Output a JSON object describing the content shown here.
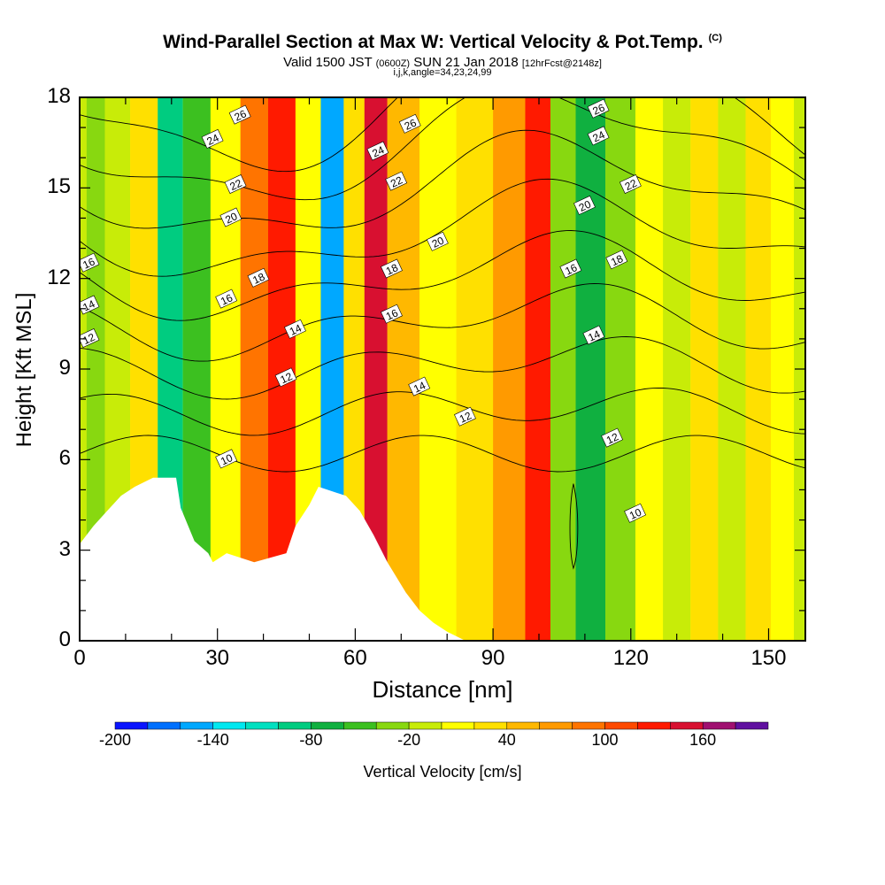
{
  "header": {
    "title": "Wind-Parallel Section at Max W: Vertical Velocity & Pot.Temp.",
    "title_mark": "(C)",
    "valid_prefix": "Valid 1500 JST",
    "valid_utc": "(0600Z)",
    "valid_date": "SUN 21 Jan 2018",
    "forecast_info": "[12hrFcst@2148z]",
    "section_info": "i,j,k,angle=34,23,24,99"
  },
  "chart_data": {
    "type": "heatmap",
    "title": "Wind-Parallel Section at Max W: Vertical Velocity & Pot.Temp.",
    "xlabel": "Distance [nm]",
    "ylabel": "Height [Kft MSL]",
    "xlim": [
      0,
      158
    ],
    "ylim": [
      0,
      18
    ],
    "x_ticks": [
      "0",
      "30",
      "60",
      "90",
      "120",
      "150"
    ],
    "y_ticks": [
      "0",
      "3",
      "6",
      "9",
      "12",
      "15",
      "18"
    ],
    "colorbar": {
      "title": "Vertical Velocity [cm/s]",
      "tick_labels": [
        "-200",
        "-140",
        "-80",
        "-20",
        "40",
        "100",
        "160"
      ],
      "levels_cm_s": [
        -200,
        -180,
        -160,
        -140,
        -120,
        -100,
        -80,
        -60,
        -40,
        -20,
        0,
        20,
        40,
        60,
        80,
        100,
        120,
        140,
        160,
        180,
        200
      ],
      "colors": [
        "#0a14ff",
        "#0070ff",
        "#00a8ff",
        "#00e8f0",
        "#00e0c0",
        "#00cc80",
        "#10b040",
        "#3cc020",
        "#88d810",
        "#c8ec08",
        "#ffff00",
        "#ffe000",
        "#ffb800",
        "#ff9a00",
        "#ff7400",
        "#ff4a00",
        "#ff1a00",
        "#d81030",
        "#a01070",
        "#6010a0"
      ]
    },
    "vertical_velocity_bands_cm_s": [
      {
        "x": 0,
        "w": -20
      },
      {
        "x": 3,
        "w": -40
      },
      {
        "x": 8,
        "w": -10
      },
      {
        "x": 14,
        "w": 25
      },
      {
        "x": 20,
        "w": -90
      },
      {
        "x": 25,
        "w": -50
      },
      {
        "x": 32,
        "w": 15
      },
      {
        "x": 38,
        "w": 90
      },
      {
        "x": 44,
        "w": 120
      },
      {
        "x": 50,
        "w": 10
      },
      {
        "x": 55,
        "w": -150
      },
      {
        "x": 60,
        "w": 20
      },
      {
        "x": 64,
        "w": 140
      },
      {
        "x": 70,
        "w": 40
      },
      {
        "x": 78,
        "w": 10
      },
      {
        "x": 86,
        "w": 30
      },
      {
        "x": 94,
        "w": 60
      },
      {
        "x": 100,
        "w": 120
      },
      {
        "x": 105,
        "w": -40
      },
      {
        "x": 111,
        "w": -70
      },
      {
        "x": 118,
        "w": -30
      },
      {
        "x": 124,
        "w": 10
      },
      {
        "x": 130,
        "w": -20
      },
      {
        "x": 136,
        "w": 20
      },
      {
        "x": 142,
        "w": -20
      },
      {
        "x": 148,
        "w": 30
      },
      {
        "x": 153,
        "w": 10
      },
      {
        "x": 158,
        "w": -20
      }
    ],
    "terrain_kft": [
      {
        "x": 0,
        "h": 3.2
      },
      {
        "x": 3,
        "h": 3.8
      },
      {
        "x": 6,
        "h": 4.3
      },
      {
        "x": 9,
        "h": 4.8
      },
      {
        "x": 12,
        "h": 5.1
      },
      {
        "x": 16,
        "h": 5.4
      },
      {
        "x": 21,
        "h": 5.4
      },
      {
        "x": 22,
        "h": 4.4
      },
      {
        "x": 25,
        "h": 3.3
      },
      {
        "x": 28,
        "h": 2.9
      },
      {
        "x": 29,
        "h": 2.6
      },
      {
        "x": 32,
        "h": 2.9
      },
      {
        "x": 38,
        "h": 2.6
      },
      {
        "x": 45,
        "h": 2.9
      },
      {
        "x": 47,
        "h": 3.8
      },
      {
        "x": 50,
        "h": 4.5
      },
      {
        "x": 52,
        "h": 5.1
      },
      {
        "x": 58,
        "h": 4.8
      },
      {
        "x": 61,
        "h": 4.3
      },
      {
        "x": 64,
        "h": 3.5
      },
      {
        "x": 67,
        "h": 2.6
      },
      {
        "x": 71,
        "h": 1.6
      },
      {
        "x": 74,
        "h": 1.0
      },
      {
        "x": 77,
        "h": 0.6
      },
      {
        "x": 80,
        "h": 0.3
      },
      {
        "x": 84,
        "h": 0.0
      }
    ],
    "theta_contours_c": [
      10,
      12,
      14,
      16,
      18,
      20,
      22,
      24,
      26
    ],
    "theta_contour_labels": [
      {
        "text": "10",
        "x": 32,
        "y": 6.0
      },
      {
        "text": "12",
        "x": 2,
        "y": 10.0
      },
      {
        "text": "14",
        "x": 2,
        "y": 11.1
      },
      {
        "text": "16",
        "x": 2,
        "y": 12.5
      },
      {
        "text": "12",
        "x": 45,
        "y": 8.7
      },
      {
        "text": "14",
        "x": 47,
        "y": 10.3
      },
      {
        "text": "16",
        "x": 32,
        "y": 11.3
      },
      {
        "text": "18",
        "x": 39,
        "y": 12.0
      },
      {
        "text": "20",
        "x": 33,
        "y": 14.0
      },
      {
        "text": "22",
        "x": 34,
        "y": 15.1
      },
      {
        "text": "24",
        "x": 29,
        "y": 16.6
      },
      {
        "text": "26",
        "x": 35,
        "y": 17.4
      },
      {
        "text": "14",
        "x": 74,
        "y": 8.4
      },
      {
        "text": "12",
        "x": 84,
        "y": 7.4
      },
      {
        "text": "16",
        "x": 68,
        "y": 10.8
      },
      {
        "text": "18",
        "x": 68,
        "y": 12.3
      },
      {
        "text": "20",
        "x": 78,
        "y": 13.2
      },
      {
        "text": "22",
        "x": 69,
        "y": 15.2
      },
      {
        "text": "24",
        "x": 65,
        "y": 16.2
      },
      {
        "text": "26",
        "x": 72,
        "y": 17.1
      },
      {
        "text": "16",
        "x": 107,
        "y": 12.3
      },
      {
        "text": "14",
        "x": 112,
        "y": 10.1
      },
      {
        "text": "12",
        "x": 116,
        "y": 6.7
      },
      {
        "text": "10",
        "x": 121,
        "y": 4.2
      },
      {
        "text": "18",
        "x": 117,
        "y": 12.6
      },
      {
        "text": "20",
        "x": 110,
        "y": 14.4
      },
      {
        "text": "22",
        "x": 120,
        "y": 15.1
      },
      {
        "text": "24",
        "x": 113,
        "y": 16.7
      },
      {
        "text": "26",
        "x": 113,
        "y": 17.6
      }
    ]
  }
}
